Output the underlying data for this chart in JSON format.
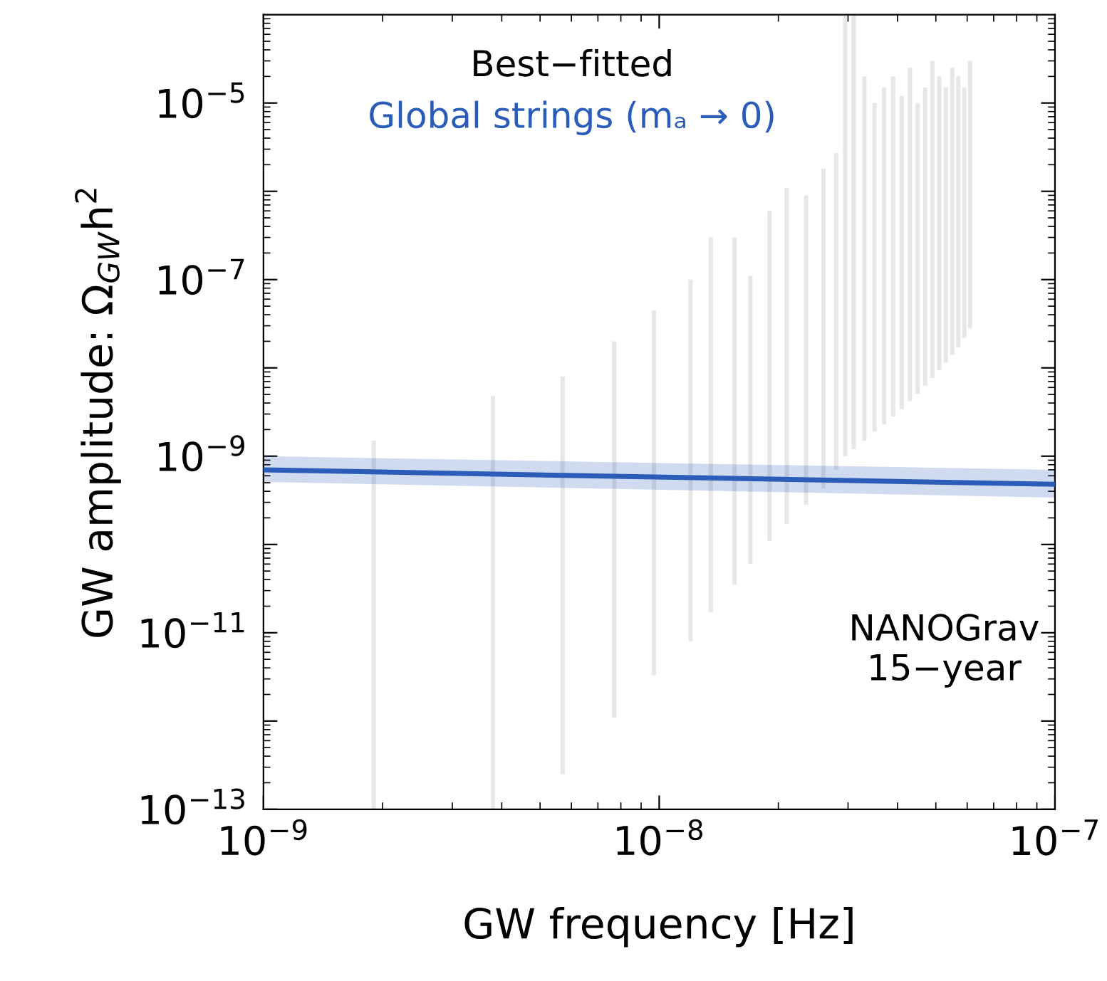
{
  "chart_data": {
    "type": "bar",
    "xlabel": "GW frequency [Hz]",
    "ylabel": "GW amplitude: Ω$_{GW}$h$^{2}$",
    "legend_title": "Best−fitted",
    "log": "xy",
    "xlim": [
      1e-09,
      1e-07
    ],
    "ylim": [
      1e-13,
      0.0001
    ],
    "xticks": [
      {
        "value": 1e-09,
        "label": "10$^{−9}$"
      },
      {
        "value": 1e-08,
        "label": "10$^{−8}$"
      },
      {
        "value": 1e-07,
        "label": "10$^{−7}$"
      }
    ],
    "yticks": [
      {
        "value": 1e-13,
        "label": "10$^{−13}$"
      },
      {
        "value": 1e-12,
        "label": null
      },
      {
        "value": 1e-11,
        "label": "10$^{−11}$"
      },
      {
        "value": 1e-10,
        "label": null
      },
      {
        "value": 1e-09,
        "label": "10$^{−9}$"
      },
      {
        "value": 1e-08,
        "label": null
      },
      {
        "value": 1e-07,
        "label": "10$^{−7}$"
      },
      {
        "value": 1e-06,
        "label": null
      },
      {
        "value": 1e-05,
        "label": "10$^{−5}$"
      }
    ],
    "annotations": [
      "NANOGrav\n15−year"
    ],
    "series": [
      {
        "color": "#e3e3e3",
        "x": [
          1.9e-09,
          3.8e-09,
          5.7e-09,
          7.7e-09,
          9.7e-09,
          1.2e-08,
          1.35e-08,
          1.55e-08,
          1.7e-08,
          1.9e-08,
          2.1e-08,
          2.35e-08,
          2.6e-08,
          2.8e-08,
          2.95e-08,
          3.1e-08,
          3.3e-08,
          3.5e-08,
          3.7e-08,
          3.9e-08,
          4.1e-08,
          4.3e-08,
          4.5e-08,
          4.7e-08,
          4.9e-08,
          5.1e-08,
          5.3e-08,
          5.5e-08,
          5.7e-08,
          5.9e-08,
          6.1e-08
        ],
        "base": [
          1e-13,
          1e-13,
          2.5e-13,
          1.1e-12,
          3.3e-12,
          8e-12,
          1.7e-11,
          3.5e-11,
          6e-11,
          1.1e-10,
          1.7e-10,
          2.8e-10,
          4.3e-10,
          7e-10,
          1e-09,
          1.2e-09,
          1.5e-09,
          1.9e-09,
          2.3e-09,
          2.8e-09,
          3.4e-09,
          4.2e-09,
          5.1e-09,
          6.3e-09,
          7.7e-09,
          9.4e-09,
          1.15e-08,
          1.4e-08,
          1.7e-08,
          2.2e-08,
          2.8e-08
        ],
        "values": [
          1.4999e-09,
          4.7999e-09,
          7.99975e-09,
          1.99989e-08,
          4.49967e-08,
          9.9992e-08,
          2.99983e-07,
          2.99965e-07,
          1.0994e-07,
          5.9989e-07,
          1.09983e-06,
          8.9972e-07,
          1.79957e-06,
          2.6993e-06,
          9.9999e-05,
          9.99988e-05,
          1.99985e-05,
          9.9981e-06,
          1.49977e-05,
          1.99972e-05,
          1.19966e-05,
          2.49958e-05,
          9.9949e-06,
          1.49937e-05,
          2.99923e-05,
          1.99906e-05,
          1.49885e-05,
          2.4986e-05,
          1.9983e-05,
          1.4978e-05,
          2.9972e-05
        ]
      },
      {
        "type": "line",
        "name": "Global strings (mₐ → 0)",
        "color": "#2b5cb8",
        "x": [
          1e-09,
          1e-07
        ],
        "values": [
          7e-10,
          4.8e-10
        ],
        "lower": [
          5.1e-10,
          3.4e-10
        ],
        "upper": [
          1e-09,
          7e-10
        ]
      }
    ]
  }
}
